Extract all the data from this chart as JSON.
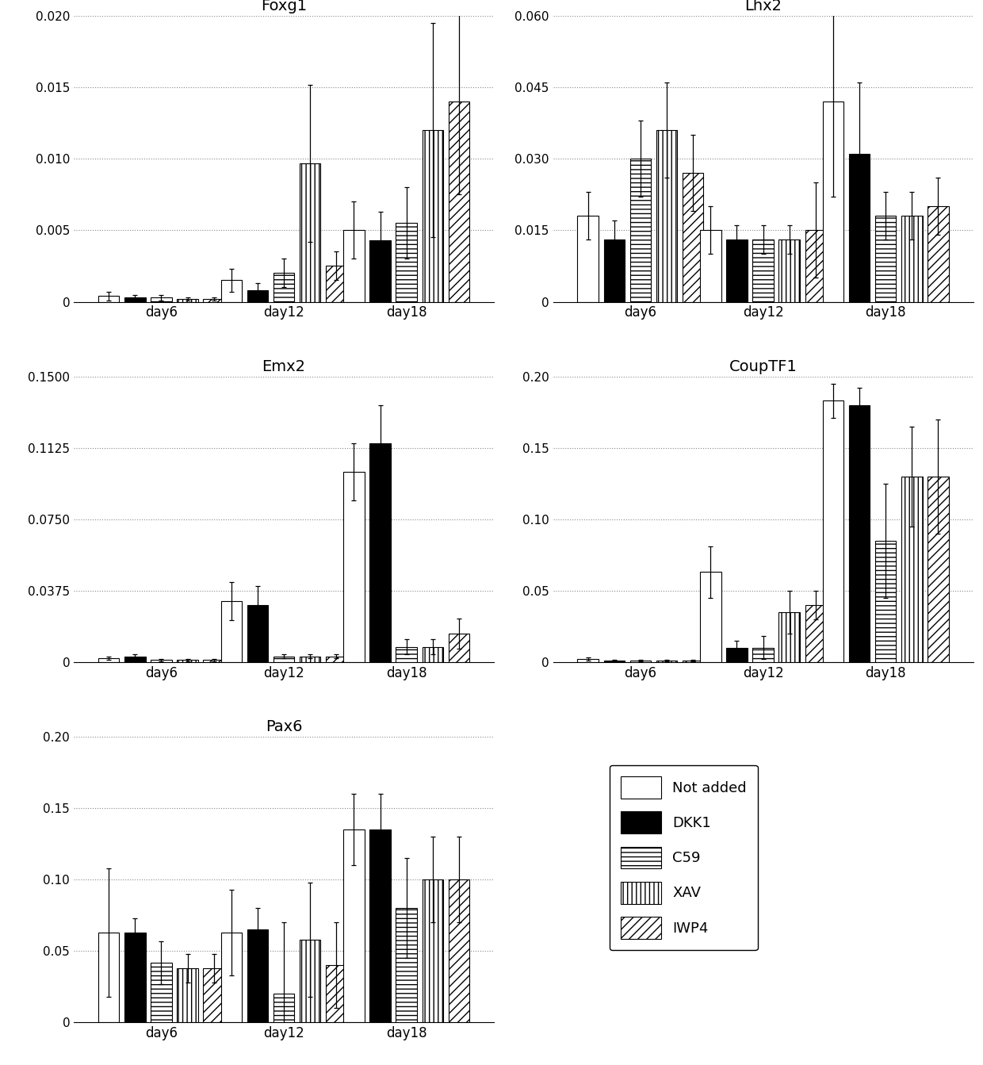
{
  "subplots": [
    {
      "title": "Foxg1",
      "ylim": [
        0,
        0.02
      ],
      "yticks": [
        0,
        0.005,
        0.01,
        0.015,
        0.02
      ],
      "ytick_labels": [
        "0",
        "0.005",
        "0.010",
        "0.015",
        "0.020"
      ],
      "groups": [
        "day6",
        "day12",
        "day18"
      ],
      "values": [
        [
          0.0004,
          0.0003,
          0.0003,
          0.0002,
          0.0002
        ],
        [
          0.0015,
          0.0008,
          0.002,
          0.0097,
          0.0025
        ],
        [
          0.005,
          0.0043,
          0.0055,
          0.012,
          0.014
        ]
      ],
      "errors": [
        [
          0.0003,
          0.0002,
          0.0002,
          0.0001,
          0.0001
        ],
        [
          0.0008,
          0.0005,
          0.001,
          0.0055,
          0.001
        ],
        [
          0.002,
          0.002,
          0.0025,
          0.0075,
          0.0065
        ]
      ]
    },
    {
      "title": "Lhx2",
      "ylim": [
        0,
        0.06
      ],
      "yticks": [
        0,
        0.015,
        0.03,
        0.045,
        0.06
      ],
      "ytick_labels": [
        "0",
        "0.015",
        "0.030",
        "0.045",
        "0.060"
      ],
      "groups": [
        "day6",
        "day12",
        "day18"
      ],
      "values": [
        [
          0.018,
          0.013,
          0.03,
          0.036,
          0.027
        ],
        [
          0.015,
          0.013,
          0.013,
          0.013,
          0.015
        ],
        [
          0.042,
          0.031,
          0.018,
          0.018,
          0.02
        ]
      ],
      "errors": [
        [
          0.005,
          0.004,
          0.008,
          0.01,
          0.008
        ],
        [
          0.005,
          0.003,
          0.003,
          0.003,
          0.01
        ],
        [
          0.02,
          0.015,
          0.005,
          0.005,
          0.006
        ]
      ]
    },
    {
      "title": "Emx2",
      "ylim": [
        0,
        0.15
      ],
      "yticks": [
        0,
        0.0375,
        0.075,
        0.1125,
        0.15
      ],
      "ytick_labels": [
        "0",
        "0.0375",
        "0.0750",
        "0.1125",
        "0.1500"
      ],
      "groups": [
        "day6",
        "day12",
        "day18"
      ],
      "values": [
        [
          0.002,
          0.003,
          0.001,
          0.001,
          0.001
        ],
        [
          0.032,
          0.03,
          0.003,
          0.003,
          0.003
        ],
        [
          0.1,
          0.115,
          0.008,
          0.008,
          0.015
        ]
      ],
      "errors": [
        [
          0.001,
          0.001,
          0.0005,
          0.0005,
          0.0005
        ],
        [
          0.01,
          0.01,
          0.001,
          0.001,
          0.001
        ],
        [
          0.015,
          0.02,
          0.004,
          0.004,
          0.008
        ]
      ]
    },
    {
      "title": "CoupTF1",
      "ylim": [
        0,
        0.2
      ],
      "yticks": [
        0,
        0.05,
        0.1,
        0.15,
        0.2
      ],
      "ytick_labels": [
        "0",
        "0.05",
        "0.10",
        "0.15",
        "0.20"
      ],
      "groups": [
        "day6",
        "day12",
        "day18"
      ],
      "values": [
        [
          0.002,
          0.001,
          0.001,
          0.001,
          0.001
        ],
        [
          0.063,
          0.01,
          0.01,
          0.035,
          0.04
        ],
        [
          0.183,
          0.18,
          0.085,
          0.13,
          0.13
        ]
      ],
      "errors": [
        [
          0.001,
          0.0005,
          0.0005,
          0.0005,
          0.0005
        ],
        [
          0.018,
          0.005,
          0.008,
          0.015,
          0.01
        ],
        [
          0.012,
          0.012,
          0.04,
          0.035,
          0.04
        ]
      ]
    },
    {
      "title": "Pax6",
      "ylim": [
        0,
        0.2
      ],
      "yticks": [
        0,
        0.05,
        0.1,
        0.15,
        0.2
      ],
      "ytick_labels": [
        "0",
        "0.05",
        "0.10",
        "0.15",
        "0.20"
      ],
      "groups": [
        "day6",
        "day12",
        "day18"
      ],
      "values": [
        [
          0.063,
          0.063,
          0.042,
          0.038,
          0.038
        ],
        [
          0.063,
          0.065,
          0.02,
          0.058,
          0.04
        ],
        [
          0.135,
          0.135,
          0.08,
          0.1,
          0.1
        ]
      ],
      "errors": [
        [
          0.045,
          0.01,
          0.015,
          0.01,
          0.01
        ],
        [
          0.03,
          0.015,
          0.05,
          0.04,
          0.03
        ],
        [
          0.025,
          0.025,
          0.035,
          0.03,
          0.03
        ]
      ]
    }
  ],
  "legend_labels": [
    "Not added",
    "DKK1",
    "C59",
    "XAV",
    "IWP4"
  ],
  "bar_colors": [
    "white",
    "black",
    "white",
    "white",
    "white"
  ],
  "bar_hatches": [
    null,
    null,
    "---",
    "|||",
    "///"
  ],
  "bar_edgecolors": [
    "black",
    "black",
    "black",
    "black",
    "black"
  ],
  "title_fontsize": 14,
  "tick_fontsize": 11,
  "label_fontsize": 12
}
